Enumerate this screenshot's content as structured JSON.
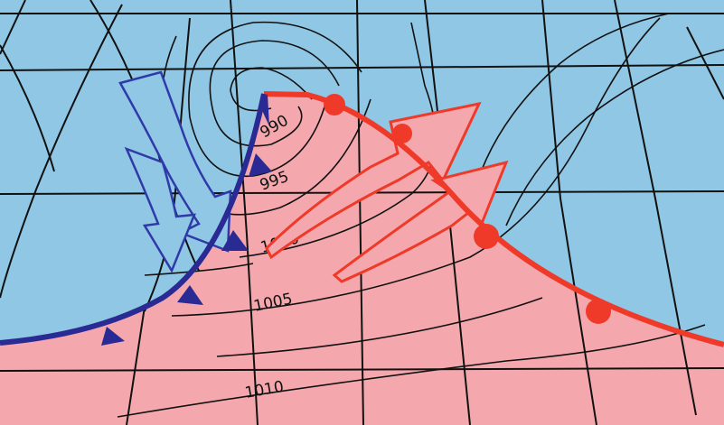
{
  "colors": {
    "cold_air": "#8fc7e4",
    "warm_air": "#f4a8ad",
    "cold_front": "#2a2a94",
    "warm_front": "#ef3a2a",
    "cold_arrow_fill": "#8fc7e4",
    "cold_arrow_outline": "#2f3aa8",
    "warm_arrow_fill": "#f4a8ad",
    "warm_arrow_outline": "#ef3a2a",
    "lines": "#111111"
  },
  "isobars": [
    {
      "label": "990"
    },
    {
      "label": "995"
    },
    {
      "label": "1000"
    },
    {
      "label": "1005"
    },
    {
      "label": "1010"
    }
  ],
  "icons": {
    "cold_front_symbol": "triangle",
    "warm_front_symbol": "semicircle",
    "cold_air_flow": "arrow",
    "warm_air_flow": "arrow"
  }
}
